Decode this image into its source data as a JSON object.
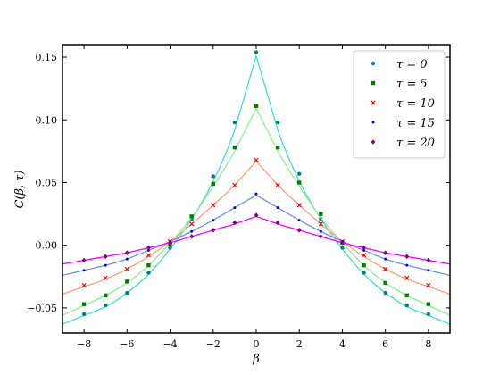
{
  "chart_data": {
    "type": "line",
    "xlabel": "β",
    "ylabel": "C(β, τ)",
    "xlim": [
      -9,
      9
    ],
    "ylim": [
      -0.07,
      0.16
    ],
    "xticks": [
      -8,
      -6,
      -4,
      -2,
      0,
      2,
      4,
      6,
      8
    ],
    "xtick_labels": [
      "−8",
      "−6",
      "−4",
      "−2",
      "0",
      "2",
      "4",
      "6",
      "8"
    ],
    "yticks": [
      -0.05,
      0,
      0.05,
      0.1,
      0.15
    ],
    "ytick_labels": [
      "−0.05",
      "0.00",
      "0.05",
      "0.10",
      "0.15"
    ],
    "grid": false,
    "legend_position": "top-right",
    "x": [
      -8,
      -7,
      -6,
      -5,
      -4,
      -3,
      -2,
      -1,
      0,
      1,
      2,
      3,
      4,
      5,
      6,
      7,
      8
    ],
    "series": [
      {
        "name": "τ = 0",
        "line_color": "#40e0d0",
        "marker_color": "#008080",
        "marker": "circle",
        "values": [
          -0.055,
          -0.048,
          -0.038,
          -0.022,
          -0.002,
          0.021,
          0.055,
          0.098,
          0.154,
          0.098,
          0.057,
          0.021,
          -0.002,
          -0.022,
          -0.038,
          -0.048,
          -0.055
        ],
        "fit_values": [
          -0.056,
          -0.049,
          -0.038,
          -0.023,
          -0.003,
          0.021,
          0.051,
          0.092,
          0.151,
          0.092,
          0.051,
          0.021,
          -0.003,
          -0.023,
          -0.038,
          -0.049,
          -0.056
        ]
      },
      {
        "name": "τ = 5",
        "line_color": "#90ee90",
        "marker_color": "#008000",
        "marker": "square",
        "values": [
          -0.047,
          -0.04,
          -0.029,
          -0.016,
          0.001,
          0.023,
          0.049,
          0.078,
          0.111,
          0.078,
          0.05,
          0.025,
          0.002,
          -0.016,
          -0.03,
          -0.04,
          -0.047
        ],
        "fit_values": [
          -0.048,
          -0.04,
          -0.03,
          -0.016,
          0.002,
          0.022,
          0.047,
          0.075,
          0.109,
          0.075,
          0.047,
          0.022,
          0.002,
          -0.016,
          -0.03,
          -0.04,
          -0.048
        ]
      },
      {
        "name": "τ = 10",
        "line_color": "#ffa07a",
        "marker_color": "#ff0000",
        "marker": "x",
        "values": [
          -0.032,
          -0.026,
          -0.019,
          -0.008,
          0.003,
          0.017,
          0.032,
          0.048,
          0.068,
          0.048,
          0.032,
          0.017,
          0.003,
          -0.008,
          -0.019,
          -0.026,
          -0.032
        ],
        "fit_values": [
          -0.033,
          -0.027,
          -0.019,
          -0.009,
          0.003,
          0.017,
          0.032,
          0.048,
          0.067,
          0.048,
          0.032,
          0.017,
          0.003,
          -0.009,
          -0.019,
          -0.027,
          -0.033
        ]
      },
      {
        "name": "τ = 15",
        "line_color": "#6495ed",
        "marker_color": "#0000ff",
        "marker": "dot",
        "values": [
          -0.02,
          -0.016,
          -0.011,
          -0.004,
          0.003,
          0.011,
          0.02,
          0.03,
          0.041,
          0.03,
          0.02,
          0.011,
          0.003,
          -0.004,
          -0.011,
          -0.016,
          -0.02
        ],
        "fit_values": [
          -0.02,
          -0.016,
          -0.011,
          -0.004,
          0.003,
          0.011,
          0.02,
          0.03,
          0.04,
          0.03,
          0.02,
          0.011,
          0.003,
          -0.004,
          -0.011,
          -0.016,
          -0.02
        ]
      },
      {
        "name": "τ = 20",
        "line_color": "#ff00ff",
        "marker_color": "#800080",
        "marker": "diamond",
        "values": [
          -0.012,
          -0.009,
          -0.006,
          -0.002,
          0.002,
          0.007,
          0.012,
          0.018,
          0.024,
          0.018,
          0.012,
          0.007,
          0.002,
          -0.002,
          -0.006,
          -0.009,
          -0.012
        ],
        "fit_values": [
          -0.012,
          -0.009,
          -0.006,
          -0.002,
          0.002,
          0.007,
          0.012,
          0.017,
          0.023,
          0.017,
          0.012,
          0.007,
          0.002,
          -0.002,
          -0.006,
          -0.009,
          -0.012
        ]
      }
    ]
  }
}
